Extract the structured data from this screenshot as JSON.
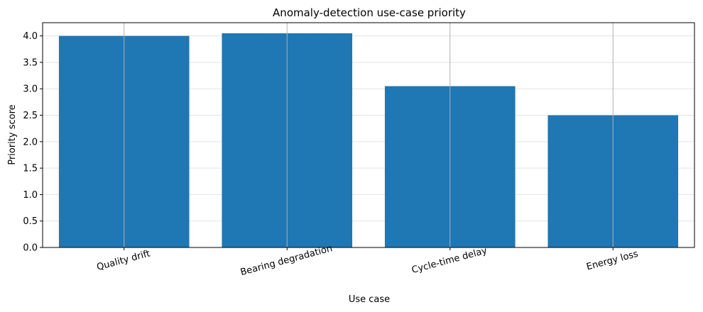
{
  "chart_data": {
    "type": "bar",
    "title": "Anomaly-detection use-case priority",
    "xlabel": "Use case",
    "ylabel": "Priority score",
    "categories": [
      "Quality drift",
      "Bearing degradation",
      "Cycle-time delay",
      "Energy loss"
    ],
    "values": [
      4.0,
      4.05,
      3.05,
      2.5
    ],
    "ylim": [
      0,
      4.25
    ],
    "yticks": [
      0.0,
      0.5,
      1.0,
      1.5,
      2.0,
      2.5,
      3.0,
      3.5,
      4.0
    ],
    "ytick_labels": [
      "0.0",
      "0.5",
      "1.0",
      "1.5",
      "2.0",
      "2.5",
      "3.0",
      "3.5",
      "4.0"
    ],
    "grid": true,
    "bar_color": "#1f77b4",
    "grid_color": "#b0b0b0"
  }
}
